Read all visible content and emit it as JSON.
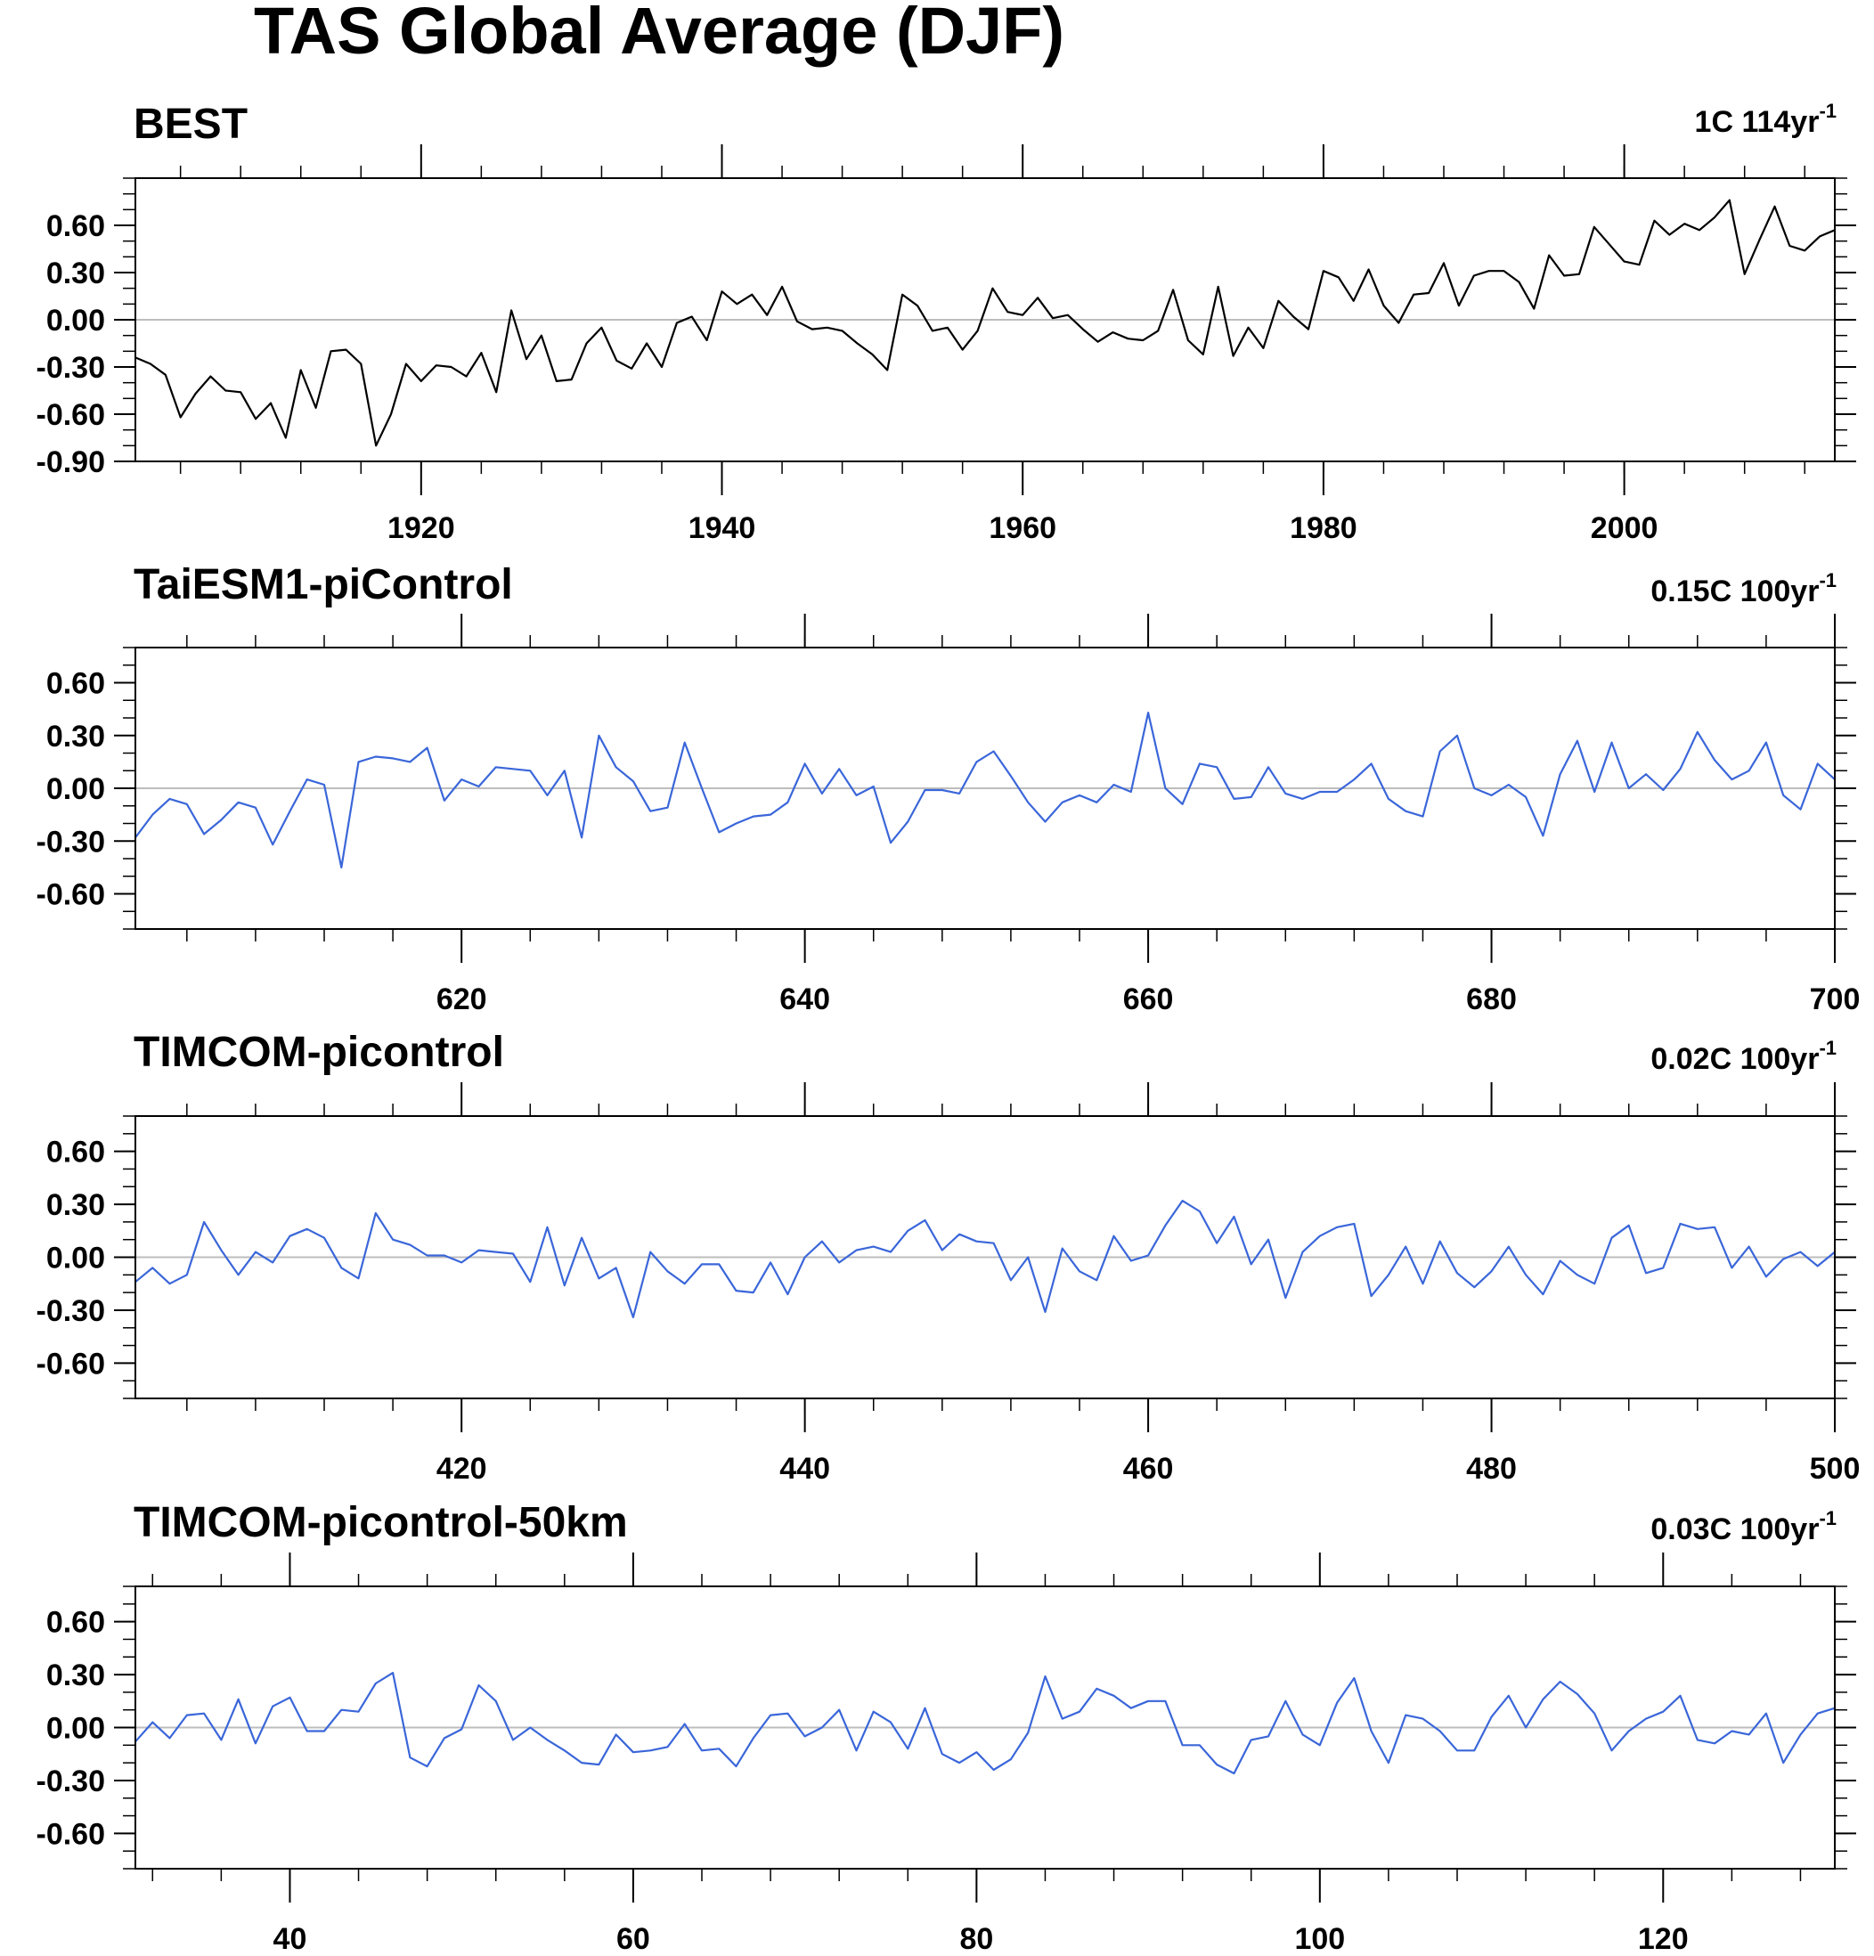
{
  "figure": {
    "title": "TAS Global Average (DJF)",
    "background": "#ffffff"
  },
  "chart_data": [
    {
      "type": "line",
      "title": "BEST",
      "trend_label": "1C 114yr",
      "trend_superscript": "-1",
      "line_color": "#000000",
      "xlim": [
        1901,
        2014
      ],
      "ylim": [
        -0.9,
        0.9
      ],
      "x_major_ticks": [
        1920,
        1940,
        1960,
        1980,
        2000
      ],
      "y_tick_labels": [
        "0.60",
        "0.30",
        "0.00",
        "-0.30",
        "-0.60",
        "-0.90"
      ],
      "y_tick_values": [
        0.6,
        0.3,
        0.0,
        -0.3,
        -0.6,
        -0.9
      ],
      "y_minor_step": 0.1,
      "x_minor_step": 4,
      "zero_line": true,
      "series": [
        {
          "x_start": 1901,
          "values": [
            -0.24,
            -0.28,
            -0.35,
            -0.62,
            -0.47,
            -0.36,
            -0.45,
            -0.46,
            -0.63,
            -0.53,
            -0.75,
            -0.32,
            -0.56,
            -0.2,
            -0.19,
            -0.28,
            -0.8,
            -0.6,
            -0.28,
            -0.39,
            -0.29,
            -0.3,
            -0.36,
            -0.21,
            -0.46,
            0.06,
            -0.25,
            -0.1,
            -0.39,
            -0.38,
            -0.15,
            -0.05,
            -0.26,
            -0.31,
            -0.15,
            -0.3,
            -0.02,
            0.02,
            -0.13,
            0.18,
            0.1,
            0.16,
            0.03,
            0.21,
            -0.01,
            -0.06,
            -0.05,
            -0.07,
            -0.15,
            -0.22,
            -0.32,
            0.16,
            0.09,
            -0.07,
            -0.05,
            -0.19,
            -0.07,
            0.2,
            0.05,
            0.03,
            0.14,
            0.01,
            0.03,
            -0.06,
            -0.14,
            -0.08,
            -0.12,
            -0.13,
            -0.07,
            0.19,
            -0.13,
            -0.22,
            0.21,
            -0.23,
            -0.05,
            -0.18,
            0.12,
            0.02,
            -0.06,
            0.31,
            0.27,
            0.12,
            0.32,
            0.09,
            -0.02,
            0.16,
            0.17,
            0.36,
            0.09,
            0.28,
            0.31,
            0.31,
            0.24,
            0.07,
            0.41,
            0.28,
            0.29,
            0.59,
            0.48,
            0.37,
            0.35,
            0.63,
            0.54,
            0.61,
            0.57,
            0.65,
            0.76,
            0.29,
            0.51,
            0.72,
            0.47,
            0.44,
            0.53,
            0.57
          ]
        }
      ]
    },
    {
      "type": "line",
      "title": "TaiESM1-piControl",
      "trend_label": "0.15C 100yr",
      "trend_superscript": "-1",
      "line_color": "#3a66d9",
      "xlim": [
        601,
        700
      ],
      "ylim": [
        -0.8,
        0.8
      ],
      "x_major_ticks": [
        620,
        640,
        660,
        680,
        700
      ],
      "y_tick_labels": [
        "0.60",
        "0.30",
        "0.00",
        "-0.30",
        "-0.60"
      ],
      "y_tick_values": [
        0.6,
        0.3,
        0.0,
        -0.3,
        -0.6
      ],
      "y_minor_step": 0.1,
      "x_minor_step": 4,
      "zero_line": true,
      "series": [
        {
          "x_start": 601,
          "values": [
            -0.28,
            -0.15,
            -0.06,
            -0.09,
            -0.26,
            -0.18,
            -0.08,
            -0.11,
            -0.32,
            -0.13,
            0.05,
            0.02,
            -0.45,
            0.15,
            0.18,
            0.17,
            0.15,
            0.23,
            -0.07,
            0.05,
            0.01,
            0.12,
            0.11,
            0.1,
            -0.04,
            0.1,
            -0.28,
            0.3,
            0.12,
            0.04,
            -0.13,
            -0.11,
            0.26,
            0.0,
            -0.25,
            -0.2,
            -0.16,
            -0.15,
            -0.08,
            0.14,
            -0.03,
            0.11,
            -0.04,
            0.01,
            -0.31,
            -0.19,
            -0.01,
            -0.01,
            -0.03,
            0.15,
            0.21,
            0.07,
            -0.08,
            -0.19,
            -0.08,
            -0.04,
            -0.08,
            0.02,
            -0.02,
            0.43,
            0.0,
            -0.09,
            0.14,
            0.12,
            -0.06,
            -0.05,
            0.12,
            -0.03,
            -0.06,
            -0.02,
            -0.02,
            0.05,
            0.14,
            -0.06,
            -0.13,
            -0.16,
            0.21,
            0.3,
            0.0,
            -0.04,
            0.02,
            -0.05,
            -0.27,
            0.08,
            0.27,
            -0.02,
            0.26,
            0.0,
            0.08,
            -0.01,
            0.11,
            0.32,
            0.16,
            0.05,
            0.1,
            0.26,
            -0.04,
            -0.12,
            0.14,
            0.05
          ]
        }
      ]
    },
    {
      "type": "line",
      "title": "TIMCOM-picontrol",
      "trend_label": "0.02C 100yr",
      "trend_superscript": "-1",
      "line_color": "#3a66d9",
      "xlim": [
        401,
        500
      ],
      "ylim": [
        -0.8,
        0.8
      ],
      "x_major_ticks": [
        420,
        440,
        460,
        480,
        500
      ],
      "y_tick_labels": [
        "0.60",
        "0.30",
        "0.00",
        "-0.30",
        "-0.60"
      ],
      "y_tick_values": [
        0.6,
        0.3,
        0.0,
        -0.3,
        -0.6
      ],
      "y_minor_step": 0.1,
      "x_minor_step": 4,
      "zero_line": true,
      "series": [
        {
          "x_start": 401,
          "values": [
            -0.14,
            -0.06,
            -0.15,
            -0.1,
            0.2,
            0.04,
            -0.1,
            0.03,
            -0.03,
            0.12,
            0.16,
            0.11,
            -0.06,
            -0.12,
            0.25,
            0.1,
            0.07,
            0.01,
            0.01,
            -0.03,
            0.04,
            0.03,
            0.02,
            -0.14,
            0.17,
            -0.16,
            0.11,
            -0.12,
            -0.06,
            -0.34,
            0.03,
            -0.08,
            -0.15,
            -0.04,
            -0.04,
            -0.19,
            -0.2,
            -0.03,
            -0.21,
            0.0,
            0.09,
            -0.03,
            0.04,
            0.06,
            0.03,
            0.15,
            0.21,
            0.04,
            0.13,
            0.09,
            0.08,
            -0.13,
            0.0,
            -0.31,
            0.05,
            -0.08,
            -0.13,
            0.12,
            -0.02,
            0.01,
            0.18,
            0.32,
            0.26,
            0.08,
            0.23,
            -0.04,
            0.1,
            -0.23,
            0.03,
            0.12,
            0.17,
            0.19,
            -0.22,
            -0.1,
            0.06,
            -0.15,
            0.09,
            -0.09,
            -0.17,
            -0.08,
            0.06,
            -0.1,
            -0.21,
            -0.02,
            -0.1,
            -0.15,
            0.11,
            0.18,
            -0.09,
            -0.06,
            0.19,
            0.16,
            0.17,
            -0.06,
            0.06,
            -0.11,
            -0.01,
            0.03,
            -0.05,
            0.03
          ]
        }
      ]
    },
    {
      "type": "line",
      "title": "TIMCOM-picontrol-50km",
      "trend_label": "0.03C 100yr",
      "trend_superscript": "-1",
      "line_color": "#3a66d9",
      "xlim": [
        31,
        130
      ],
      "ylim": [
        -0.8,
        0.8
      ],
      "x_major_ticks": [
        40,
        60,
        80,
        100,
        120
      ],
      "y_tick_labels": [
        "0.60",
        "0.30",
        "0.00",
        "-0.30",
        "-0.60"
      ],
      "y_tick_values": [
        0.6,
        0.3,
        0.0,
        -0.3,
        -0.6
      ],
      "y_minor_step": 0.1,
      "x_minor_step": 4,
      "zero_line": true,
      "series": [
        {
          "x_start": 31,
          "values": [
            -0.08,
            0.03,
            -0.06,
            0.07,
            0.08,
            -0.07,
            0.16,
            -0.09,
            0.12,
            0.17,
            -0.02,
            -0.02,
            0.1,
            0.09,
            0.25,
            0.31,
            -0.17,
            -0.22,
            -0.06,
            -0.01,
            0.24,
            0.15,
            -0.07,
            0.0,
            -0.07,
            -0.13,
            -0.2,
            -0.21,
            -0.04,
            -0.14,
            -0.13,
            -0.11,
            0.02,
            -0.13,
            -0.12,
            -0.22,
            -0.06,
            0.07,
            0.08,
            -0.05,
            0.0,
            0.1,
            -0.13,
            0.09,
            0.03,
            -0.12,
            0.11,
            -0.15,
            -0.2,
            -0.14,
            -0.24,
            -0.18,
            -0.03,
            0.29,
            0.05,
            0.09,
            0.22,
            0.18,
            0.11,
            0.15,
            0.15,
            -0.1,
            -0.1,
            -0.21,
            -0.26,
            -0.07,
            -0.05,
            0.15,
            -0.04,
            -0.1,
            0.14,
            0.28,
            -0.02,
            -0.2,
            0.07,
            0.05,
            -0.02,
            -0.13,
            -0.13,
            0.06,
            0.18,
            0.0,
            0.16,
            0.26,
            0.19,
            0.08,
            -0.13,
            -0.02,
            0.05,
            0.09,
            0.18,
            -0.07,
            -0.09,
            -0.02,
            -0.04,
            0.08,
            -0.2,
            -0.04,
            0.08,
            0.11
          ]
        }
      ]
    }
  ]
}
